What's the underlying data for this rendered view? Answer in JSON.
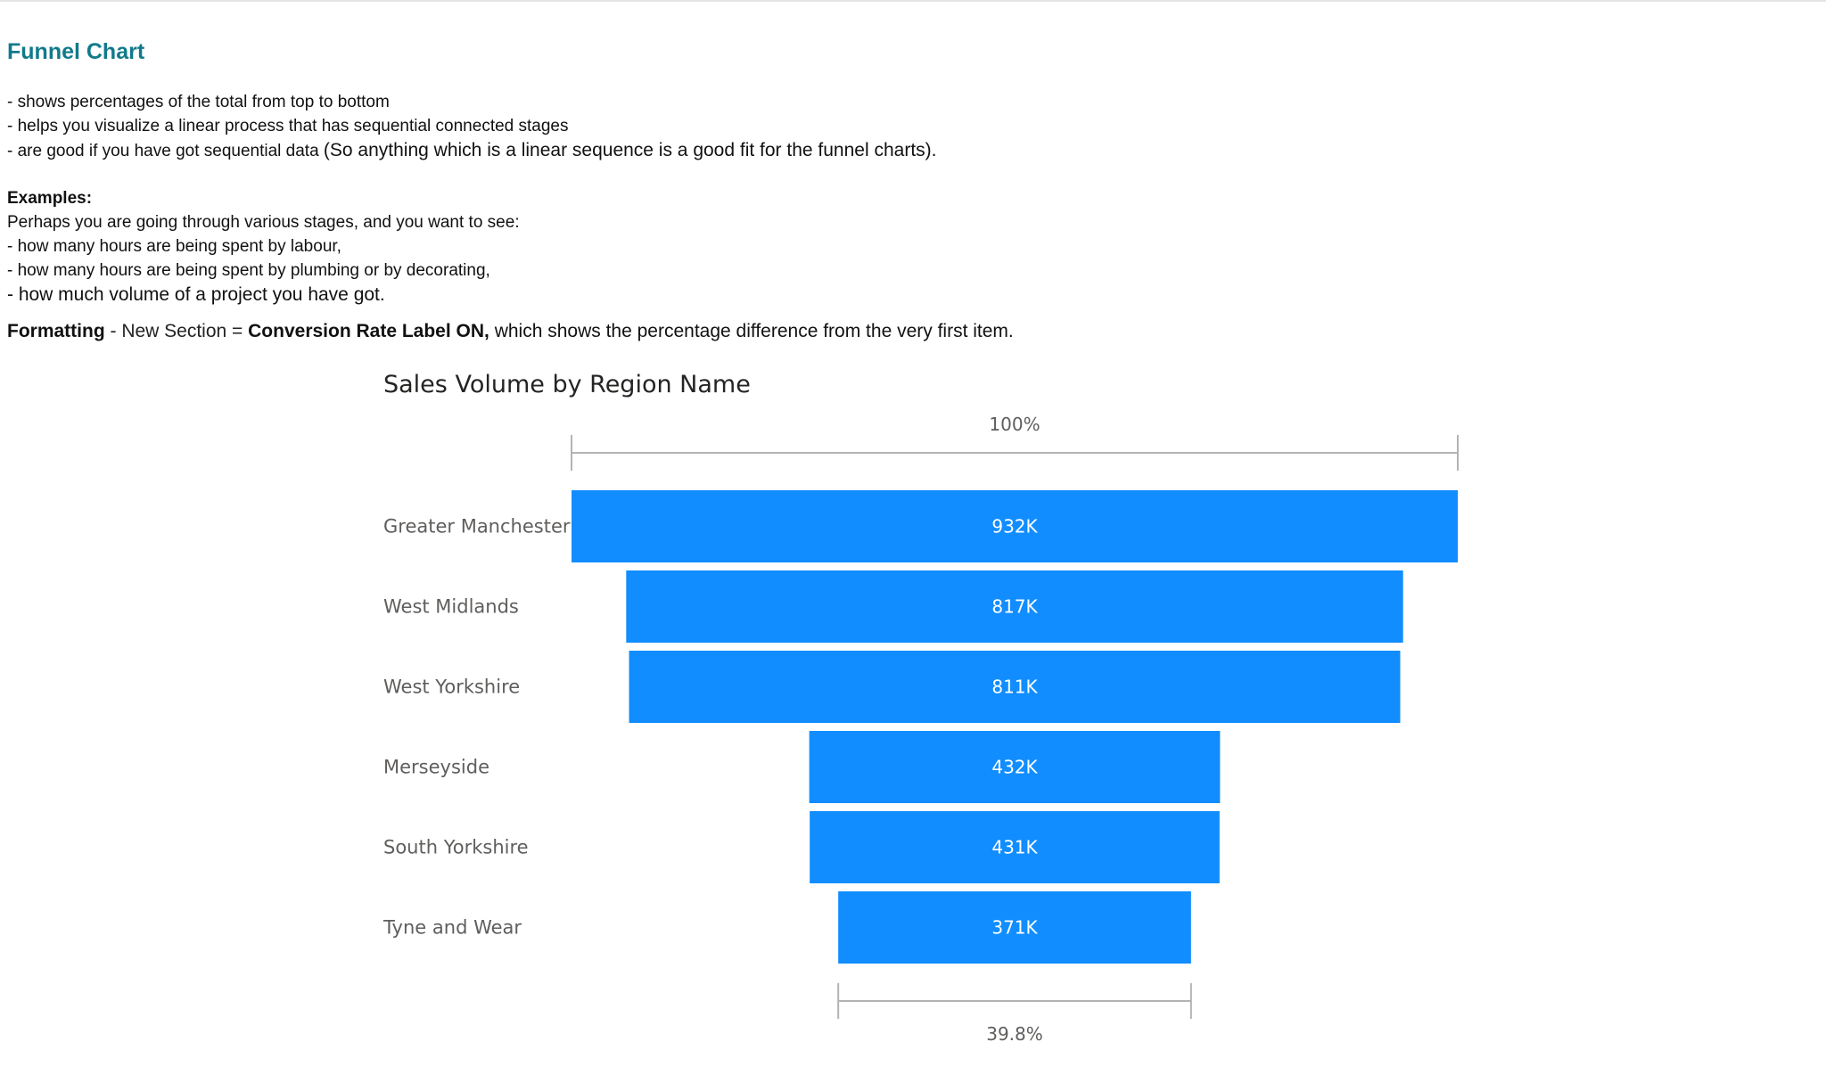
{
  "page": {
    "title": "Funnel Chart",
    "bullets": [
      "- shows percentages of the total from top to bottom",
      "- helps you visualize a linear process that has sequential connected stages",
      "- are good if you have got sequential data",
      "(So anything which is a linear sequence is a good fit for the funnel charts)."
    ],
    "examples_heading": "Examples:",
    "examples_intro": "Perhaps you are going through various stages, and you want to see:",
    "examples": [
      "- how many hours are being spent by labour,",
      "- how many hours are being spent by plumbing or by decorating,",
      "- how much volume of a project you have got."
    ],
    "formatting": {
      "label": "Formatting",
      "middle": " - New Section = ",
      "emphasis": "Conversion Rate Label ON,",
      "tail": " which shows the percentage difference from the very first item."
    }
  },
  "chart_data": {
    "type": "funnel",
    "title": "Sales Volume by Region Name",
    "categories": [
      "Greater Manchester",
      "West Midlands",
      "West Yorkshire",
      "Merseyside",
      "South Yorkshire",
      "Tyne and Wear"
    ],
    "values": [
      932000,
      817000,
      811000,
      432000,
      431000,
      371000
    ],
    "value_labels": [
      "932K",
      "817K",
      "811K",
      "432K",
      "431K",
      "371K"
    ],
    "top_conversion_label": "100%",
    "bottom_conversion_label": "39.8%",
    "bar_color": "#118dff",
    "label_color": "#605e5c",
    "bracket_color": "#b3b3b3"
  }
}
